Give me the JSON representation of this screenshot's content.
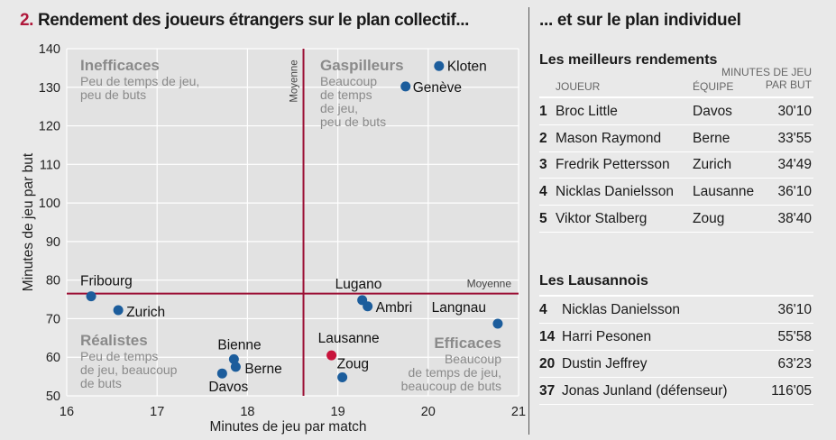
{
  "left_title": {
    "number": "2.",
    "text": "Rendement des joueurs étrangers sur le plan collectif..."
  },
  "right_title": "... et sur le plan individuel",
  "chart_data": {
    "type": "scatter",
    "xlabel": "Minutes de jeu par match",
    "ylabel": "Minutes de jeu par but",
    "xlim": [
      16,
      21
    ],
    "ylim": [
      50,
      140
    ],
    "xticks": [
      "16",
      "17",
      "18",
      "19",
      "20",
      "21"
    ],
    "yticks": [
      "50",
      "60",
      "70",
      "80",
      "90",
      "100",
      "110",
      "120",
      "130",
      "140"
    ],
    "grid": true,
    "average_x": 18.62,
    "average_y": 76.5,
    "average_label_vertical": "Moyenne",
    "average_label_horizontal": "Moyenne",
    "points": [
      {
        "label": "Kloten",
        "x": 20.12,
        "y": 135.5,
        "highlight": false
      },
      {
        "label": "Genève",
        "x": 19.75,
        "y": 130.2,
        "highlight": false
      },
      {
        "label": "Fribourg",
        "x": 16.27,
        "y": 75.8,
        "highlight": false
      },
      {
        "label": "Zurich",
        "x": 16.57,
        "y": 72.2,
        "highlight": false
      },
      {
        "label": "Lugano",
        "x": 19.27,
        "y": 74.8,
        "highlight": false
      },
      {
        "label": "Ambri",
        "x": 19.33,
        "y": 73.2,
        "highlight": false
      },
      {
        "label": "Langnau",
        "x": 20.77,
        "y": 68.7,
        "highlight": false
      },
      {
        "label": "Bienne",
        "x": 17.85,
        "y": 59.5,
        "highlight": false
      },
      {
        "label": "Berne",
        "x": 17.87,
        "y": 57.5,
        "highlight": false
      },
      {
        "label": "Davos",
        "x": 17.72,
        "y": 55.8,
        "highlight": false
      },
      {
        "label": "Lausanne",
        "x": 18.93,
        "y": 60.5,
        "highlight": true
      },
      {
        "label": "Zoug",
        "x": 19.05,
        "y": 54.8,
        "highlight": false
      }
    ],
    "quadrants": [
      {
        "title": "Inefficaces",
        "lines": [
          "Peu de temps de jeu,",
          "peu de buts"
        ]
      },
      {
        "title": "Gaspilleurs",
        "lines": [
          "Beaucoup",
          "de temps",
          "de jeu,",
          "peu de buts"
        ]
      },
      {
        "title": "Réalistes",
        "lines": [
          "Peu de temps",
          "de jeu, beaucoup",
          "de buts"
        ]
      },
      {
        "title": "Efficaces",
        "lines": [
          "Beaucoup",
          "de temps de jeu,",
          "beaucoup de buts"
        ]
      }
    ],
    "colors": {
      "point": "#1c5d9c",
      "highlight": "#c8143c",
      "average_line": "#9c1035",
      "grid": "#ffffff",
      "quadrant_text": "#8a8a8a"
    }
  },
  "best": {
    "heading": "Les meilleurs rendements",
    "col_player": "JOUEUR",
    "col_team": "ÉQUIPE",
    "col_value_1": "MINUTES DE JEU",
    "col_value_2": "PAR BUT",
    "rows": [
      {
        "rank": "1",
        "name": "Broc Little",
        "team": "Davos",
        "value": "30'10"
      },
      {
        "rank": "2",
        "name": "Mason Raymond",
        "team": "Berne",
        "value": "33'55"
      },
      {
        "rank": "3",
        "name": "Fredrik Pettersson",
        "team": "Zurich",
        "value": "34'49"
      },
      {
        "rank": "4",
        "name": "Nicklas Danielsson",
        "team": "Lausanne",
        "value": "36'10"
      },
      {
        "rank": "5",
        "name": "Viktor Stalberg",
        "team": "Zoug",
        "value": "38'40"
      }
    ]
  },
  "lausanne": {
    "heading": "Les Lausannois",
    "rows": [
      {
        "rank": "4",
        "name": "Nicklas Danielsson",
        "value": "36'10"
      },
      {
        "rank": "14",
        "name": "Harri Pesonen",
        "value": "55'58"
      },
      {
        "rank": "20",
        "name": "Dustin Jeffrey",
        "value": "63'23"
      },
      {
        "rank": "37",
        "name": "Jonas Junland (défenseur)",
        "value": "116'05"
      }
    ]
  }
}
